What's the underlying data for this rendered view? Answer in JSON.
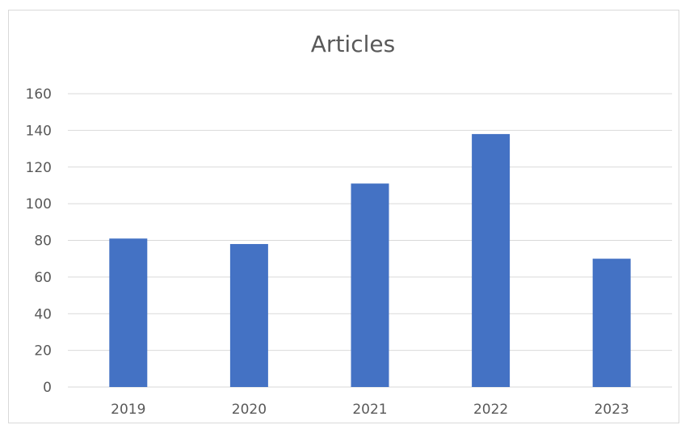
{
  "chart_data": {
    "type": "bar",
    "title": "Articles",
    "xlabel": "",
    "ylabel": "",
    "categories": [
      "2019",
      "2020",
      "2021",
      "2022",
      "2023"
    ],
    "values": [
      81,
      78,
      111,
      138,
      70
    ],
    "ylim": [
      0,
      160
    ],
    "yticks": [
      "0",
      "20",
      "40",
      "60",
      "80",
      "100",
      "120",
      "140",
      "160"
    ],
    "grid": true,
    "legend": "none",
    "bar_color": "#4472c4",
    "grid_color": "#d9d9d9",
    "text_color": "#595959"
  }
}
